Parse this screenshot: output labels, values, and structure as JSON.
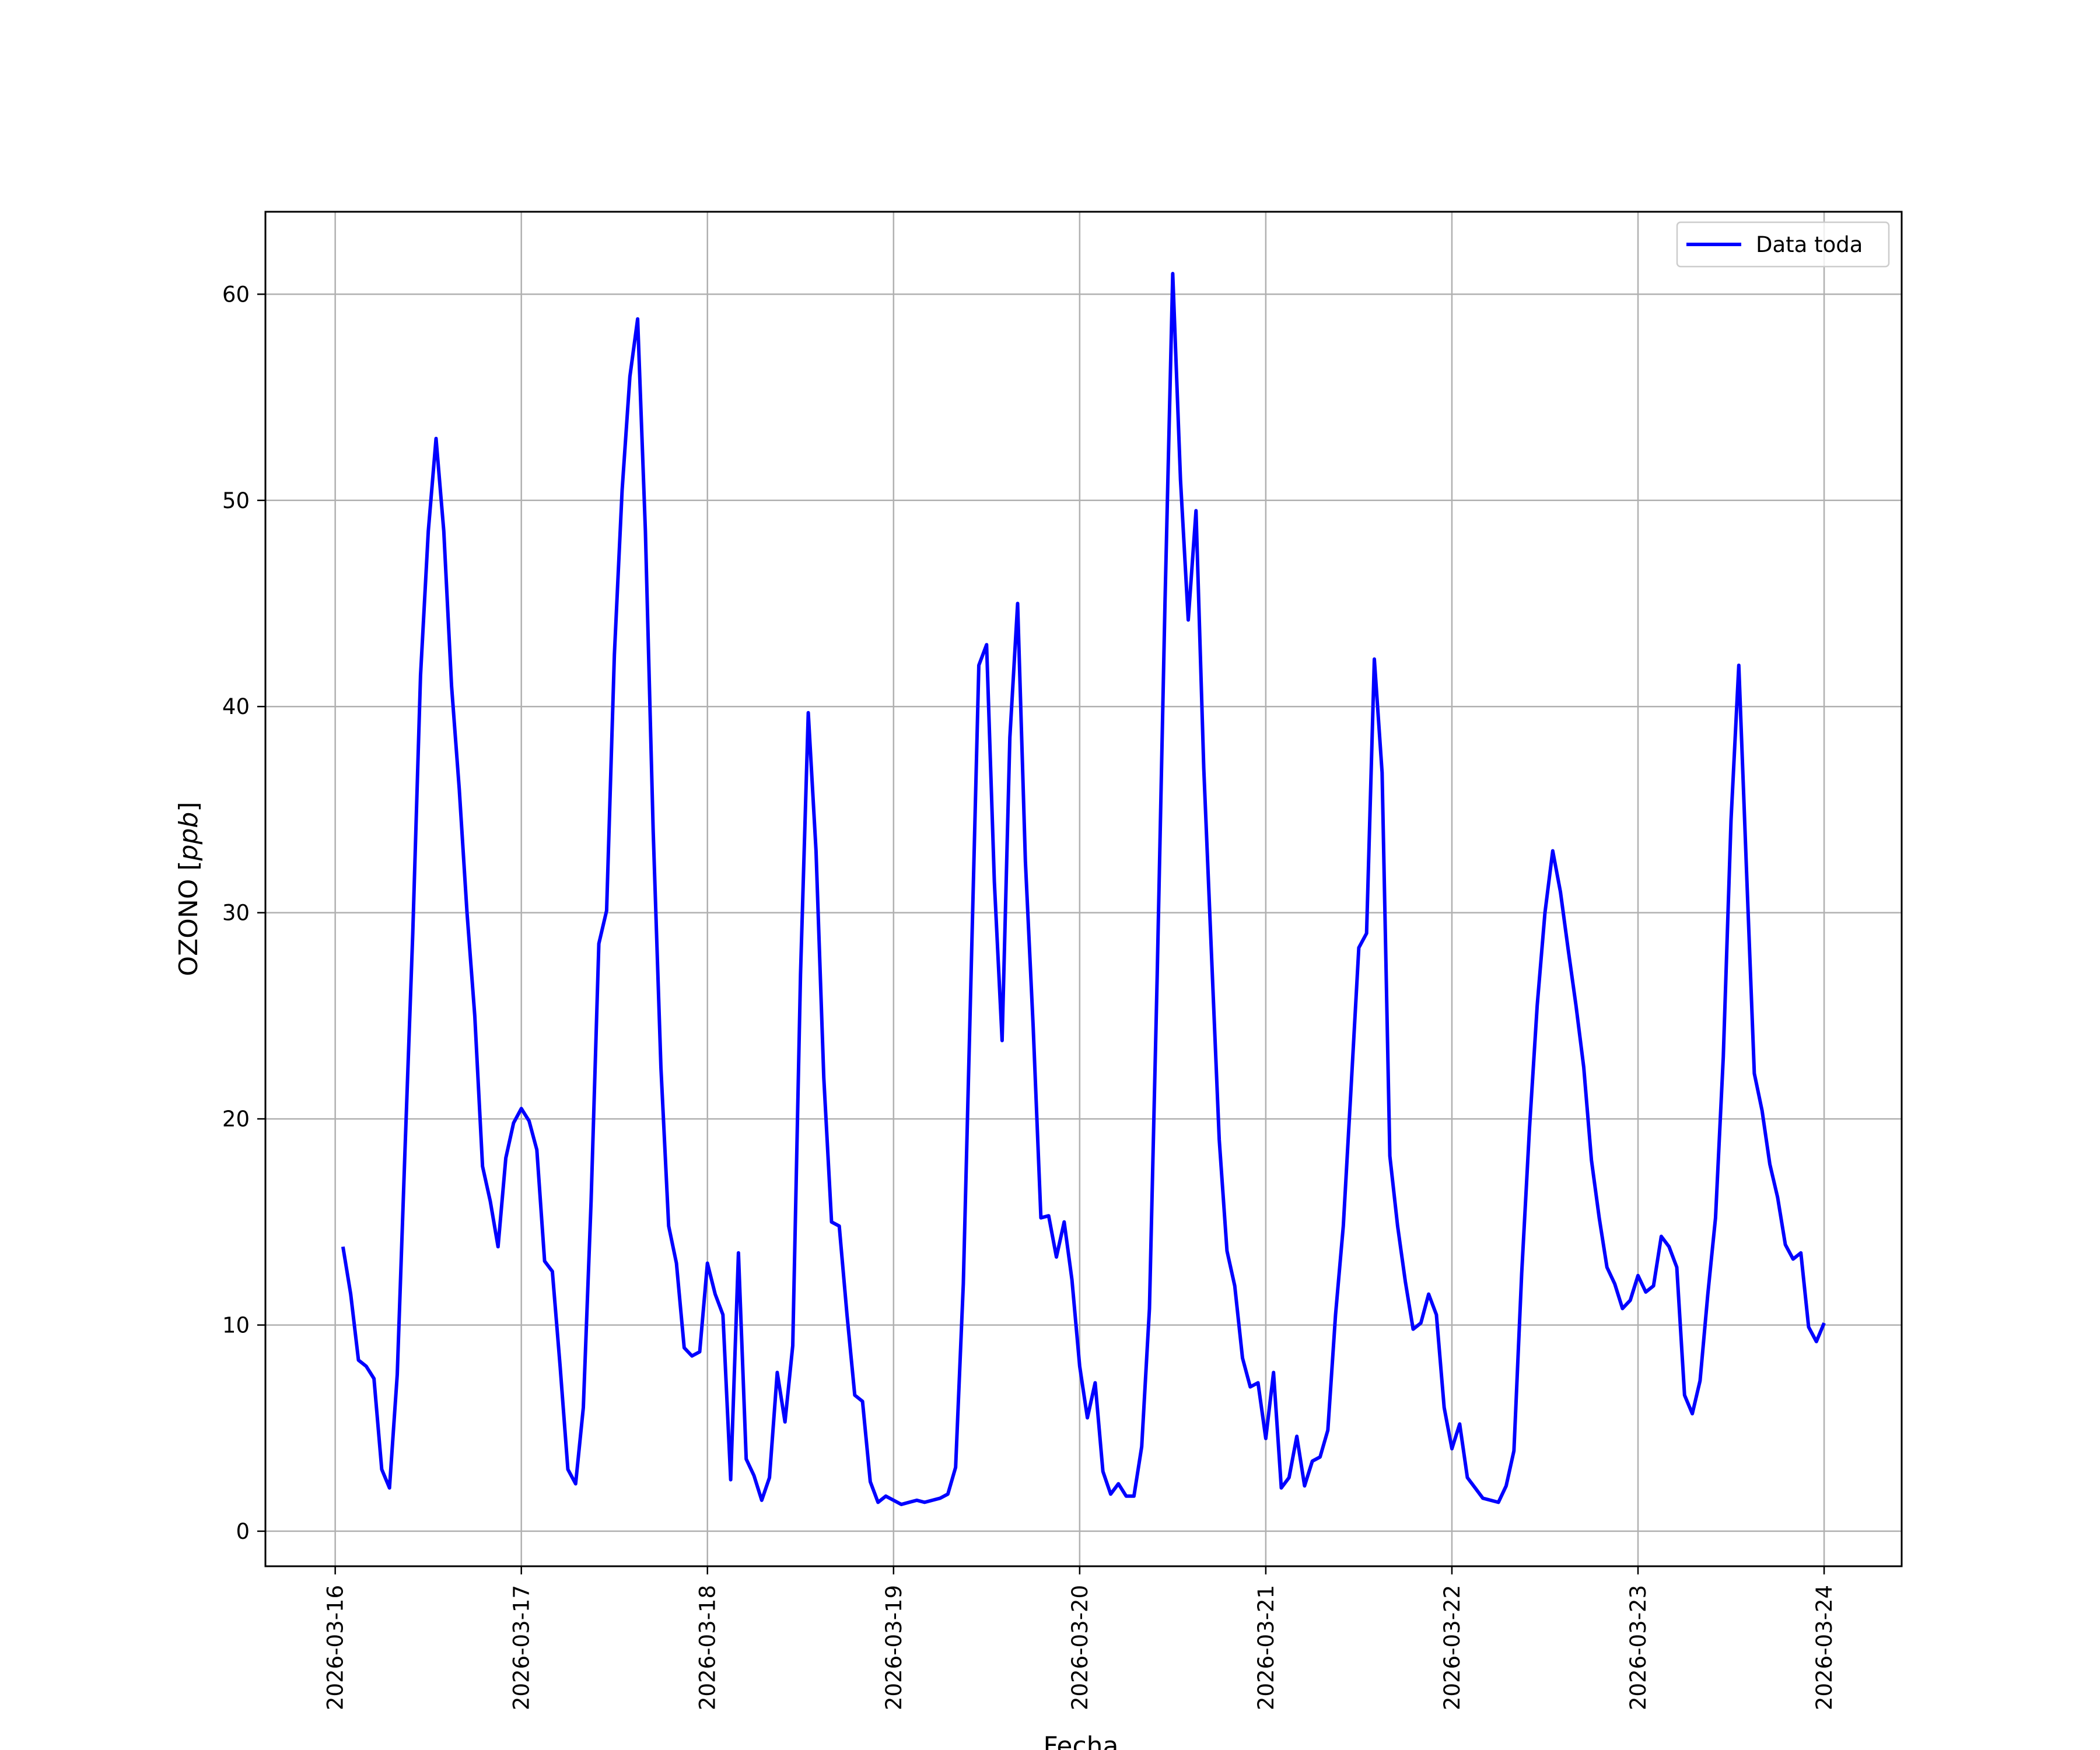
{
  "chart_data": {
    "type": "line",
    "title": "",
    "xlabel": "Fecha",
    "ylabel_main": "OZONO [",
    "ylabel_unit": "ppb",
    "ylabel_close": "]",
    "x_tick_labels": [
      "2026-03-16",
      "2026-03-17",
      "2026-03-18",
      "2026-03-19",
      "2026-03-20",
      "2026-03-21",
      "2026-03-22",
      "2026-03-23",
      "2026-03-24"
    ],
    "y_ticks": [
      0,
      10,
      20,
      30,
      40,
      50,
      60
    ],
    "xlim": [
      "2026-03-15T15:00",
      "2026-03-24T10:00"
    ],
    "ylim": [
      -1.7,
      64
    ],
    "grid": true,
    "legend": {
      "position": "top-right"
    },
    "colors": {
      "series": "#0000ff",
      "grid": "#b0b0b0",
      "frame": "#000000"
    },
    "series": [
      {
        "name": "Data toda",
        "start": "2026-03-16T01:00",
        "interval_hours": 1,
        "values": [
          13.8,
          11.5,
          8.3,
          8.0,
          7.4,
          3.0,
          2.1,
          7.6,
          18.5,
          29.0,
          41.5,
          48.5,
          53.0,
          48.5,
          41.0,
          36.0,
          30.0,
          25.0,
          17.7,
          16.0,
          13.8,
          18.1,
          19.8,
          20.5,
          19.9,
          18.5,
          13.1,
          12.6,
          8.0,
          3.0,
          2.3,
          6.0,
          16.0,
          28.5,
          30.1,
          42.5,
          50.5,
          56.0,
          58.8,
          48.5,
          34.0,
          22.5,
          14.8,
          13.0,
          8.9,
          8.5,
          8.7,
          13.0,
          11.5,
          10.5,
          2.5,
          13.5,
          3.5,
          2.7,
          1.5,
          2.6,
          7.7,
          5.3,
          9.0,
          27.0,
          39.7,
          33.0,
          22.0,
          15.0,
          14.8,
          10.5,
          6.6,
          6.3,
          2.4,
          1.4,
          1.7,
          1.5,
          1.3,
          1.4,
          1.5,
          1.4,
          1.5,
          1.6,
          1.8,
          3.1,
          12.0,
          27.0,
          42.0,
          43.0,
          31.5,
          23.8,
          38.5,
          45.0,
          32.5,
          24.5,
          15.2,
          15.3,
          13.3,
          15.0,
          12.2,
          8.0,
          5.5,
          7.2,
          2.9,
          1.8,
          2.3,
          1.7,
          1.7,
          4.1,
          10.8,
          27.0,
          45.0,
          61.0,
          51.0,
          44.2,
          49.5,
          37.0,
          28.0,
          19.0,
          13.6,
          11.9,
          8.4,
          7.0,
          7.2,
          4.5,
          7.7,
          2.1,
          2.6,
          4.6,
          2.2,
          3.4,
          3.6,
          4.9,
          10.5,
          14.8,
          21.5,
          28.3,
          29.0,
          42.3,
          36.8,
          18.2,
          14.8,
          12.1,
          9.8,
          10.1,
          11.5,
          10.5,
          6.0,
          4.0,
          5.2,
          2.6,
          2.1,
          1.6,
          1.5,
          1.4,
          2.2,
          3.9,
          12.5,
          19.5,
          25.5,
          30.0,
          33.0,
          31.0,
          28.2,
          25.5,
          22.5,
          18.0,
          15.2,
          12.8,
          12.0,
          10.8,
          11.2,
          12.4,
          11.6,
          11.9,
          14.3,
          13.8,
          12.8,
          6.6,
          5.7,
          7.3,
          11.5,
          15.2,
          23.0,
          34.5,
          42.0,
          32.0,
          22.2,
          20.4,
          17.8,
          16.2,
          13.9,
          13.2,
          13.5,
          9.9,
          9.2,
          10.1
        ]
      }
    ]
  }
}
